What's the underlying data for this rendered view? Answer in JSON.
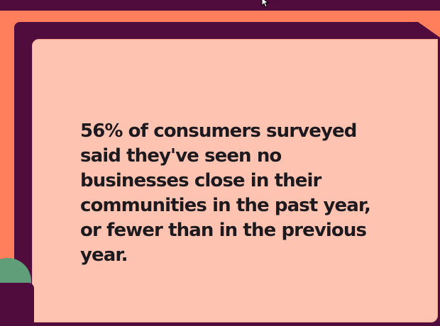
{
  "slide": {
    "stat_text": "56% of consumers surveyed said they've seen no businesses close in their communities in the past year, or fewer than in the previous year."
  },
  "colors": {
    "background": "#ff7e5c",
    "frame": "#4f0c3c",
    "card": "#ffc3b1",
    "text": "#1d1a1f",
    "accent_green": "#5f9e78"
  },
  "icons": {
    "cursor": "mouse-pointer-icon"
  }
}
